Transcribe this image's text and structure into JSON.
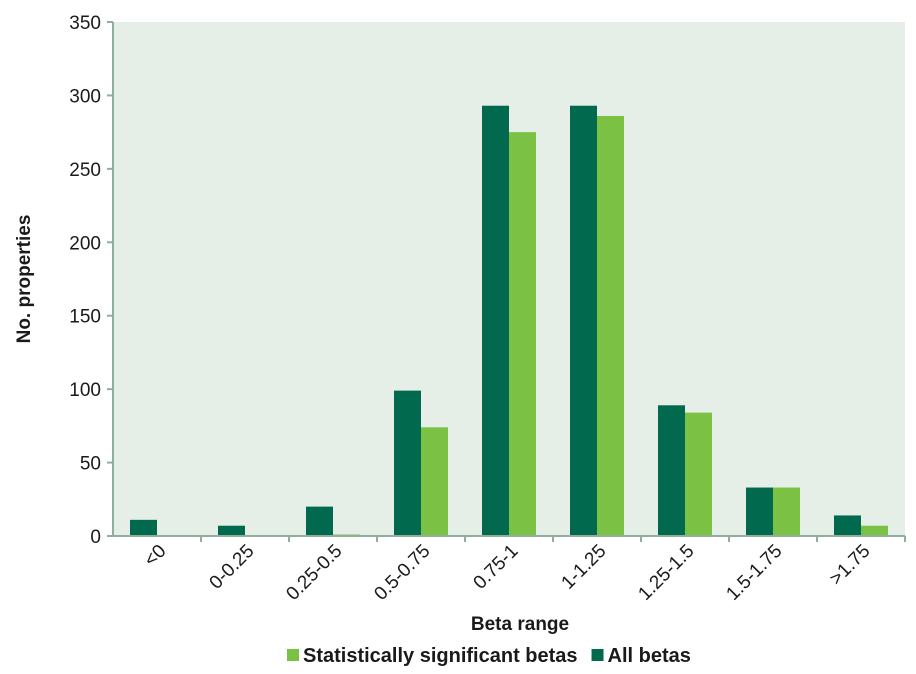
{
  "chart_data": {
    "type": "bar",
    "title": "",
    "xlabel": "Beta range",
    "ylabel": "No. properties",
    "ylim": [
      0,
      350
    ],
    "yticks": [
      0,
      50,
      100,
      150,
      200,
      250,
      300,
      350
    ],
    "categories": [
      "<0",
      "0-0.25",
      "0.25-0.5",
      "0.5-0.75",
      "0.75-1",
      "1-1.25",
      "1.25-1.5",
      "1.5-1.75",
      ">1.75"
    ],
    "series": [
      {
        "name": "All betas",
        "color": "#00694e",
        "values": [
          11,
          7,
          20,
          99,
          293,
          293,
          89,
          33,
          14
        ]
      },
      {
        "name": "Statistically significant betas",
        "color": "#7bc143",
        "values": [
          0,
          0,
          1,
          74,
          275,
          286,
          84,
          33,
          7
        ]
      }
    ],
    "legend": {
      "position": "bottom",
      "order": [
        "Statistically significant betas",
        "All betas"
      ]
    },
    "plot_background": "#e6eee8",
    "axis_color": "#8fae9b",
    "grid": false
  }
}
